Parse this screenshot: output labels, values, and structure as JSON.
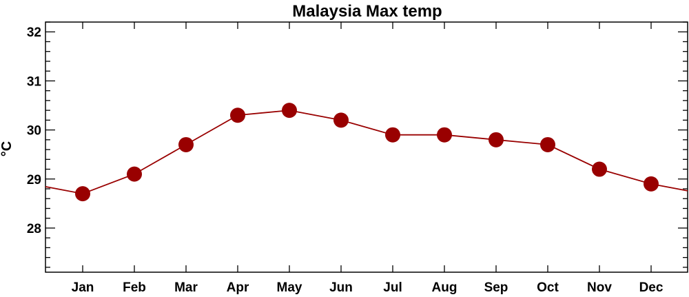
{
  "chart_data": {
    "type": "line",
    "title": "Malaysia Max temp",
    "xlabel": "",
    "ylabel": "°C",
    "categories": [
      "Jan",
      "Feb",
      "Mar",
      "Apr",
      "May",
      "Jun",
      "Jul",
      "Aug",
      "Sep",
      "Oct",
      "Nov",
      "Dec"
    ],
    "series": [
      {
        "values": [
          28.7,
          29.1,
          29.7,
          30.3,
          30.4,
          30.2,
          29.9,
          29.9,
          29.8,
          29.7,
          29.2,
          28.9
        ]
      }
    ],
    "ylim": [
      27.1,
      32.2
    ],
    "yticks": [
      "28",
      "29",
      "30",
      "31",
      "32"
    ],
    "ytick_values": [
      28,
      29,
      30,
      31,
      32
    ],
    "y_minor_step": 0.2,
    "wrap_around": true,
    "grid": false,
    "legend": "none",
    "colors": {
      "series": "#990000",
      "axis": "#000000"
    }
  }
}
